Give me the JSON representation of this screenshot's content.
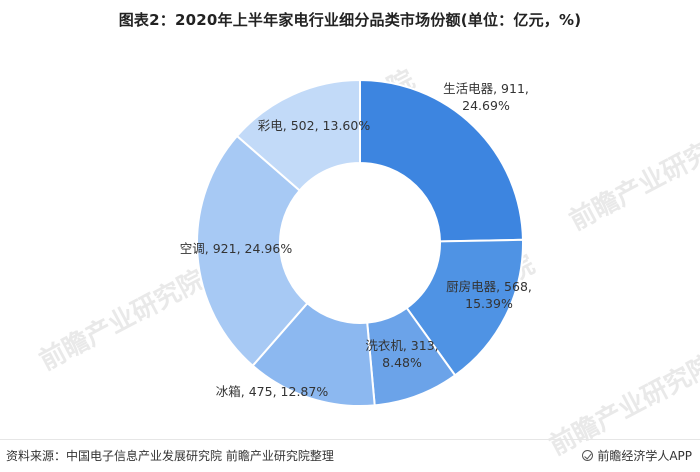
{
  "title": "图表2：2020年上半年家电行业细分品类市场份额(单位：亿元，%)",
  "source": "资料来源：中国电子信息产业发展研究院 前瞻产业研究院整理",
  "brand": "前瞻经济学人APP",
  "watermark": "前瞻产业研究院",
  "chart_data": {
    "type": "pie",
    "donut": true,
    "title": "图表2：2020年上半年家电行业细分品类市场份额(单位：亿元，%)",
    "unit": "亿元，%",
    "slices": [
      {
        "name": "生活电器",
        "value": 911,
        "percent": "24.69%",
        "color": "#3d85e0",
        "label": "生活电器, 911,",
        "label2": "24.69%"
      },
      {
        "name": "厨房电器",
        "value": 568,
        "percent": "15.39%",
        "color": "#4f93e4",
        "label": "厨房电器, 568,",
        "label2": "15.39%"
      },
      {
        "name": "洗衣机",
        "value": 313,
        "percent": "8.48%",
        "color": "#6ba3e9",
        "label": "洗衣机, 313,",
        "label2": "8.48%"
      },
      {
        "name": "冰箱",
        "value": 475,
        "percent": "12.87%",
        "color": "#8cb8f0",
        "label": "冰箱, 475, 12.87%",
        "label2": ""
      },
      {
        "name": "空调",
        "value": 921,
        "percent": "24.96%",
        "color": "#a7c9f4",
        "label": "空调, 921, 24.96%",
        "label2": ""
      },
      {
        "name": "彩电",
        "value": 502,
        "percent": "13.60%",
        "color": "#c2daf8",
        "label": "彩电, 502, 13.60%",
        "label2": ""
      }
    ]
  }
}
